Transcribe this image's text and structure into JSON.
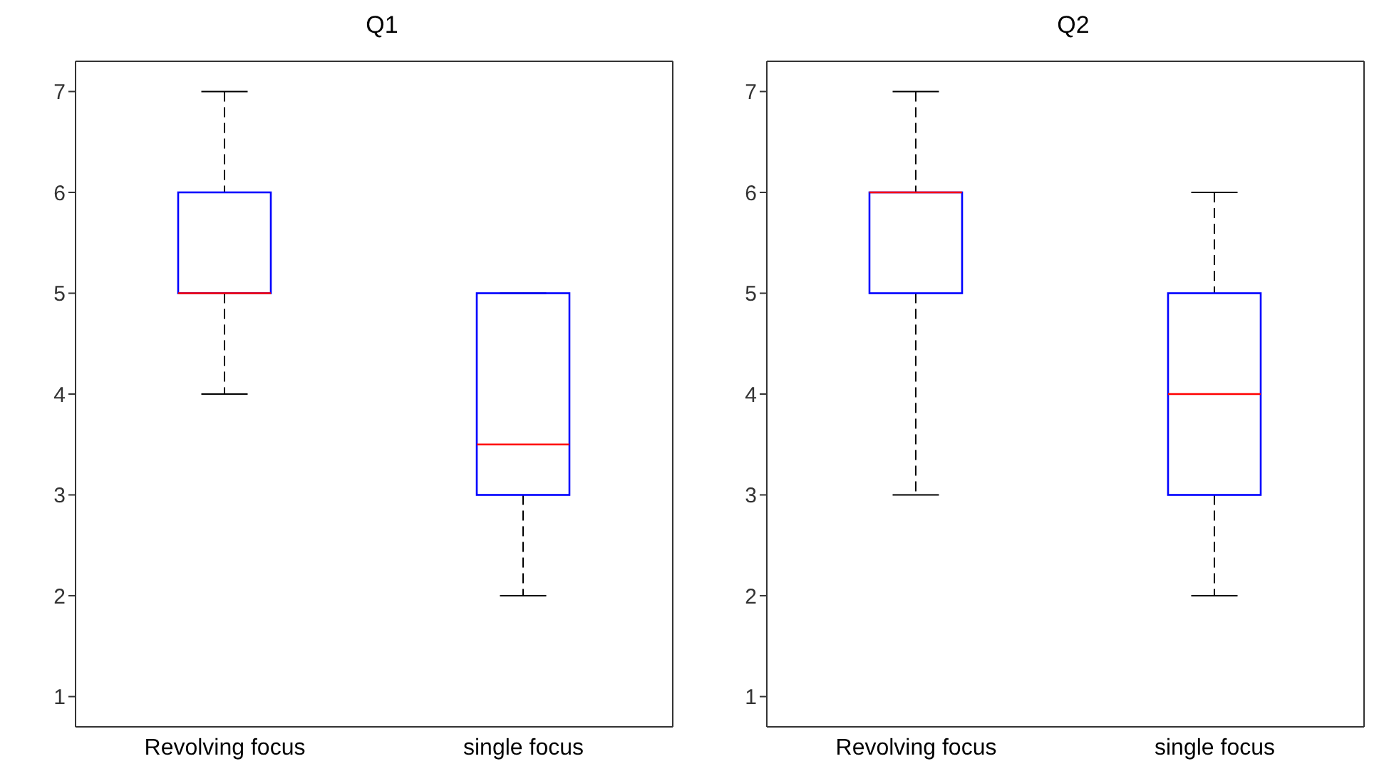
{
  "chart_data": [
    {
      "type": "box",
      "title": "Q1",
      "categories": [
        "Revolving focus",
        "single focus"
      ],
      "ylim": [
        0.7,
        7.3
      ],
      "yticks": [
        1,
        2,
        3,
        4,
        5,
        6,
        7
      ],
      "series": [
        {
          "color": "#0000ff",
          "boxes": [
            {
              "low": 4,
              "q1": 5,
              "median": 5,
              "q3": 6,
              "high": 7
            },
            {
              "low": 2,
              "q1": 3,
              "median": 3.5,
              "q3": 5,
              "high": 5
            }
          ]
        }
      ]
    },
    {
      "type": "box",
      "title": "Q2",
      "categories": [
        "Revolving focus",
        "single focus"
      ],
      "ylim": [
        0.7,
        7.3
      ],
      "yticks": [
        1,
        2,
        3,
        4,
        5,
        6,
        7
      ],
      "series": [
        {
          "color": "#0000ff",
          "boxes": [
            {
              "low": 3,
              "q1": 5,
              "median": 6,
              "q3": 6,
              "high": 7
            },
            {
              "low": 2,
              "q1": 3,
              "median": 4,
              "q3": 5,
              "high": 6
            }
          ]
        }
      ]
    }
  ]
}
